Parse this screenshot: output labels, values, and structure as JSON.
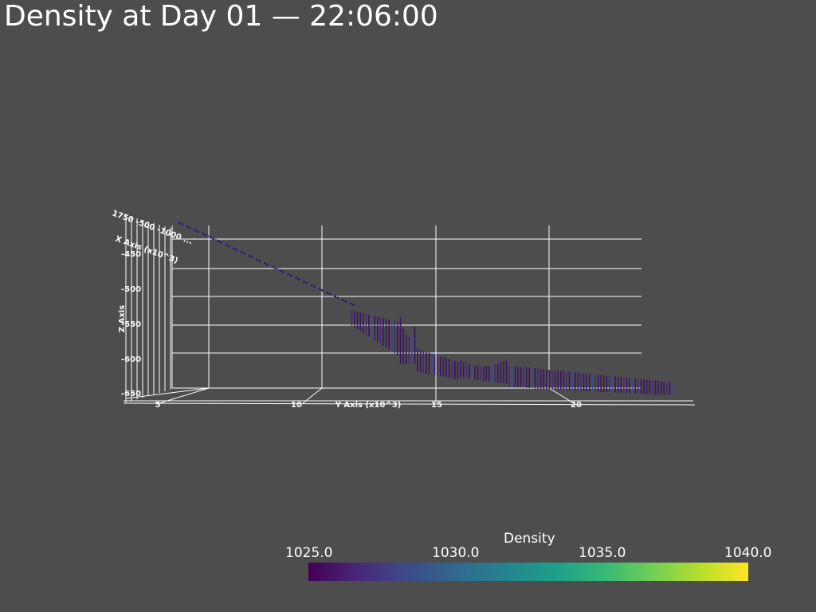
{
  "title": "Density at Day 01 — 22:06:00",
  "colors": {
    "background": "#4d4d4d",
    "grid": "#ffffff",
    "viridis": [
      "#440154",
      "#482878",
      "#3e4a89",
      "#31688e",
      "#26828e",
      "#1f9e89",
      "#35b779",
      "#6ece58",
      "#b5de2b",
      "#fde725"
    ]
  },
  "chart_data": {
    "type": "3d-scatter",
    "colorbar": {
      "title": "Density",
      "range": [
        1025.0,
        1040.0
      ],
      "ticks": [
        "1025.0",
        "1030.0",
        "1035.0",
        "1040.0"
      ],
      "colormap": "viridis"
    },
    "axes": {
      "x_label": "X Axis (x10^3)",
      "y_label": "Y Axis (x10^3)",
      "z_label": "Z Axis",
      "z_ticks": [
        "-450",
        "-500",
        "-550",
        "-600",
        "-650"
      ],
      "y_ticks": [
        "5",
        "10",
        "15",
        "20"
      ],
      "x_ticks_overlapped": "1750 -500 -1000 ..."
    },
    "profile": {
      "y_range": [
        5,
        26
      ],
      "z_values": [
        -430,
        -470,
        -510,
        -545,
        -575,
        -555,
        -600,
        -605,
        -625,
        -640,
        -650
      ],
      "y_values": [
        6,
        9,
        11,
        13,
        14.5,
        15,
        16,
        18,
        20,
        23,
        26
      ],
      "density_min": 1025.0,
      "density_max": 1026.5
    }
  }
}
